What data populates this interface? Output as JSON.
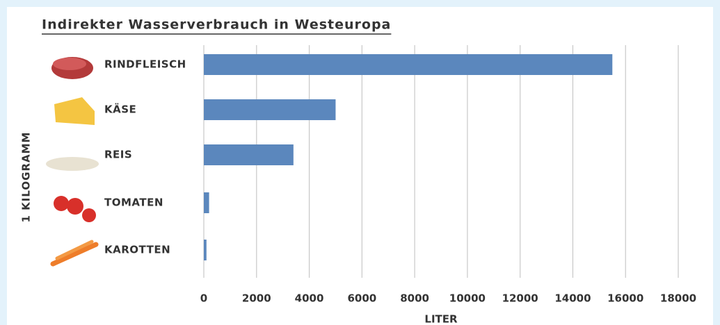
{
  "chart_data": {
    "type": "barh",
    "title": "Indirekter Wasserverbrauch in Westeuropa",
    "x_label": "LITER",
    "y_label": "1 KILOGRAMM",
    "categories": [
      "RINDFLEISCH",
      "KÄSE",
      "REIS",
      "TOMATEN",
      "KAROTTEN"
    ],
    "values": [
      15500,
      5000,
      3400,
      200,
      100
    ],
    "color": "#5b87bd",
    "xlim": [
      0,
      18000
    ],
    "xticks": [
      0,
      2000,
      4000,
      6000,
      8000,
      10000,
      12000,
      14000,
      16000,
      18000
    ],
    "grid": true
  }
}
